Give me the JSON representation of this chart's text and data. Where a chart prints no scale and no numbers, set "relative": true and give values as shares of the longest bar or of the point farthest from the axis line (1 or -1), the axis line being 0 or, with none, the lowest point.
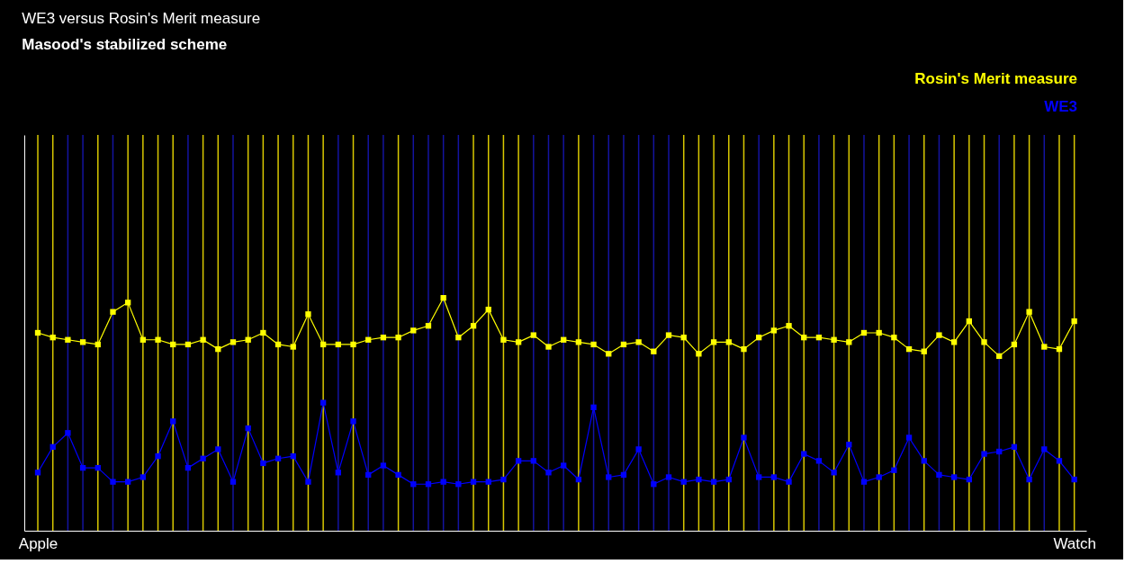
{
  "chart_data": {
    "type": "line",
    "title": "WE3 versus Rosin's Merit measure",
    "subtitle": "Masood's stabilized scheme",
    "relative": true,
    "marker": "square",
    "legend": "top right",
    "grid": "x",
    "categories": [
      "Apple",
      null,
      null,
      null,
      null,
      null,
      null,
      null,
      null,
      null,
      null,
      null,
      null,
      null,
      null,
      null,
      null,
      null,
      null,
      null,
      null,
      null,
      null,
      null,
      null,
      null,
      null,
      null,
      null,
      null,
      null,
      null,
      null,
      null,
      null,
      null,
      null,
      null,
      null,
      null,
      null,
      null,
      null,
      null,
      null,
      null,
      null,
      null,
      null,
      null,
      null,
      null,
      null,
      null,
      null,
      null,
      null,
      null,
      null,
      null,
      null,
      null,
      null,
      null,
      null,
      null,
      null,
      null,
      null,
      "Watch"
    ],
    "series": [
      {
        "name": "Rosin's Merit measure",
        "color": "#ffff00",
        "values": [
          0.85,
          0.83,
          0.82,
          0.81,
          0.8,
          0.94,
          0.98,
          0.82,
          0.82,
          0.8,
          0.8,
          0.82,
          0.78,
          0.81,
          0.82,
          0.85,
          0.8,
          0.79,
          0.93,
          0.8,
          0.8,
          0.8,
          0.82,
          0.83,
          0.83,
          0.86,
          0.88,
          1,
          0.83,
          0.88,
          0.95,
          0.82,
          0.81,
          0.84,
          0.79,
          0.82,
          0.81,
          0.8,
          0.76,
          0.8,
          0.81,
          0.77,
          0.84,
          0.83,
          0.76,
          0.81,
          0.81,
          0.78,
          0.83,
          0.86,
          0.88,
          0.83,
          0.83,
          0.82,
          0.81,
          0.85,
          0.85,
          0.83,
          0.78,
          0.77,
          0.84,
          0.81,
          0.9,
          0.81,
          0.75,
          0.8,
          0.94,
          0.79,
          0.78,
          0.9
        ]
      },
      {
        "name": "WE3",
        "color": "#0000ff",
        "values": [
          0.25,
          0.36,
          0.42,
          0.27,
          0.27,
          0.21,
          0.21,
          0.23,
          0.32,
          0.47,
          0.27,
          0.31,
          0.35,
          0.21,
          0.44,
          0.29,
          0.31,
          0.32,
          0.21,
          0.55,
          0.25,
          0.47,
          0.24,
          0.28,
          0.24,
          0.2,
          0.2,
          0.21,
          0.2,
          0.21,
          0.21,
          0.22,
          0.3,
          0.3,
          0.25,
          0.28,
          0.22,
          0.53,
          0.23,
          0.24,
          0.35,
          0.2,
          0.23,
          0.21,
          0.22,
          0.21,
          0.22,
          0.4,
          0.23,
          0.23,
          0.21,
          0.33,
          0.3,
          0.25,
          0.37,
          0.21,
          0.23,
          0.26,
          0.4,
          0.3,
          0.24,
          0.23,
          0.22,
          0.33,
          0.34,
          0.36,
          0.22,
          0.35,
          0.3,
          0.22
        ]
      }
    ]
  }
}
